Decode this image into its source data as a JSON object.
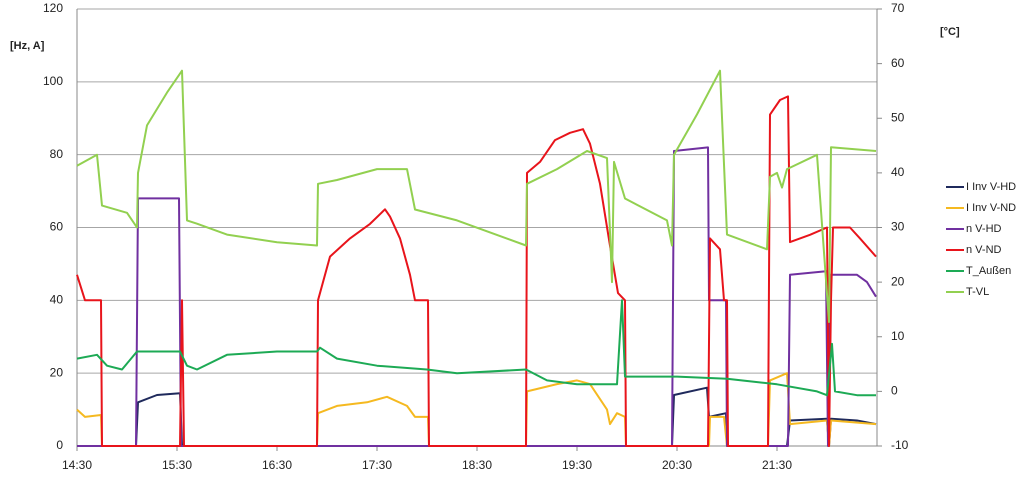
{
  "chart_data": {
    "type": "line",
    "y_label": "[Hz, A]",
    "y2_label": "[°C]",
    "xlim": [
      14.5,
      22.5
    ],
    "xticks": [
      {
        "value": 14.5,
        "label": "14:30"
      },
      {
        "value": 15.5,
        "label": "15:30"
      },
      {
        "value": 16.5,
        "label": "16:30"
      },
      {
        "value": 17.5,
        "label": "17:30"
      },
      {
        "value": 18.5,
        "label": "18:30"
      },
      {
        "value": 19.5,
        "label": "19:30"
      },
      {
        "value": 20.5,
        "label": "20:30"
      },
      {
        "value": 21.5,
        "label": "21:30"
      }
    ],
    "ylim": [
      0,
      120
    ],
    "yticks": [
      0,
      20,
      40,
      60,
      80,
      100,
      120
    ],
    "y2lim": [
      -10,
      70
    ],
    "y2ticks": [
      -10,
      0,
      10,
      20,
      30,
      40,
      50,
      60,
      70
    ],
    "grid": true,
    "legend": "right",
    "series": [
      {
        "name": "I Inv V-HD",
        "color": "#1f2a5c",
        "x": [
          14.5,
          15.09,
          15.11,
          15.3,
          15.53,
          15.55,
          20.45,
          20.47,
          20.8,
          20.82,
          20.99,
          21.0,
          21.6,
          21.63,
          22.0,
          22.02,
          22.04,
          22.3,
          22.49
        ],
        "values": [
          0,
          0,
          12,
          14,
          14.5,
          0,
          0,
          14,
          16,
          8,
          9,
          0,
          0,
          7,
          7.5,
          0,
          7.5,
          7,
          6
        ]
      },
      {
        "name": "I Inv V-ND",
        "color": "#f5b920",
        "x": [
          14.5,
          14.58,
          14.74,
          14.75,
          16.9,
          16.91,
          17.1,
          17.4,
          17.6,
          17.8,
          17.88,
          18.01,
          18.02,
          18.99,
          19.0,
          19.3,
          19.5,
          19.63,
          19.8,
          19.83,
          19.9,
          19.98,
          19.99,
          20.82,
          20.83,
          20.97,
          21.0,
          21.41,
          21.43,
          21.6,
          21.63,
          22.0,
          22.02,
          22.04,
          22.49
        ],
        "values": [
          10,
          8,
          8.5,
          0,
          0,
          9,
          11,
          12,
          13.5,
          11,
          8,
          8,
          0,
          0,
          15,
          17,
          18,
          17,
          10,
          6,
          9,
          8,
          0,
          0,
          8,
          8,
          0,
          0,
          18,
          20,
          6,
          7,
          0,
          7,
          6
        ]
      },
      {
        "name": "n V-HD",
        "color": "#7030a0",
        "x": [
          14.5,
          15.09,
          15.11,
          15.52,
          15.54,
          20.45,
          20.47,
          20.81,
          20.82,
          20.99,
          21.0,
          21.61,
          21.63,
          21.99,
          22.01,
          22.03,
          22.3,
          22.4,
          22.49
        ],
        "values": [
          0,
          0,
          68,
          68,
          0,
          0,
          81,
          82,
          40,
          40,
          0,
          0,
          47,
          48,
          0,
          47,
          47,
          45,
          41
        ]
      },
      {
        "name": "n V-ND",
        "color": "#e8141b",
        "x": [
          14.5,
          14.58,
          14.74,
          14.75,
          15.53,
          15.55,
          15.57,
          16.9,
          16.91,
          17.03,
          17.23,
          17.43,
          17.58,
          17.63,
          17.73,
          17.83,
          17.88,
          18.01,
          18.02,
          18.99,
          19.0,
          19.13,
          19.28,
          19.43,
          19.56,
          19.63,
          19.73,
          19.83,
          19.91,
          19.98,
          19.99,
          20.81,
          20.83,
          20.93,
          20.97,
          21.0,
          21.01,
          21.41,
          21.43,
          21.53,
          21.61,
          21.63,
          21.83,
          22.0,
          22.02,
          22.04,
          22.06,
          22.23,
          22.33,
          22.49
        ],
        "values": [
          47,
          40,
          40,
          0,
          0,
          40,
          0,
          0,
          40,
          52,
          57,
          61,
          65,
          63,
          57,
          47,
          40,
          40,
          0,
          0,
          75,
          78,
          84,
          86,
          87,
          83,
          72,
          55,
          42,
          40,
          0,
          0,
          57,
          54,
          40,
          40,
          0,
          0,
          91,
          95,
          96,
          56,
          58,
          60,
          0,
          40,
          60,
          60,
          57,
          52
        ]
      },
      {
        "name": "T_Außen",
        "color": "#1daa55",
        "axis": "y2",
        "x": [
          14.5,
          14.7,
          14.8,
          14.95,
          15.1,
          15.3,
          15.53,
          15.6,
          15.7,
          16.0,
          16.5,
          16.9,
          16.93,
          17.1,
          17.5,
          18.0,
          18.3,
          18.99,
          19.2,
          19.5,
          19.9,
          19.95,
          19.98,
          20.5,
          21.0,
          21.5,
          21.9,
          22.0,
          22.05,
          22.08,
          22.3,
          22.49
        ],
        "values": [
          6,
          6.7,
          4.7,
          4,
          7.3,
          7.3,
          7.3,
          4.7,
          4,
          6.7,
          7.3,
          7.3,
          8,
          6,
          4.7,
          4,
          3.3,
          4,
          2,
          1.3,
          1.3,
          16.7,
          2.7,
          2.7,
          2.3,
          1.3,
          0,
          -0.7,
          8.7,
          0,
          -0.7,
          -0.7
        ]
      },
      {
        "name": "T-VL",
        "color": "#92d050",
        "axis": "y2",
        "x": [
          14.5,
          14.7,
          14.75,
          15.0,
          15.1,
          15.11,
          15.2,
          15.4,
          15.55,
          15.6,
          15.7,
          16.0,
          16.5,
          16.9,
          16.91,
          17.1,
          17.5,
          17.8,
          17.88,
          18.3,
          18.99,
          19.0,
          19.3,
          19.6,
          19.8,
          19.85,
          19.87,
          19.98,
          20.4,
          20.45,
          20.47,
          20.7,
          20.93,
          21.0,
          21.4,
          21.43,
          21.5,
          21.55,
          21.6,
          21.9,
          22.02,
          22.04,
          22.49
        ],
        "values": [
          41.3,
          43.3,
          34,
          32.7,
          30,
          40,
          48.7,
          54.7,
          58.7,
          31.3,
          30.7,
          28.7,
          27.3,
          26.7,
          38,
          38.7,
          40.7,
          40.7,
          33.3,
          31.3,
          26.7,
          38,
          40.7,
          44,
          42.7,
          20,
          42,
          35.3,
          31.3,
          26.7,
          43.3,
          50.7,
          58.7,
          28.7,
          26,
          39.3,
          40,
          37.3,
          40.7,
          43.3,
          12.7,
          44.7,
          44
        ]
      }
    ]
  }
}
